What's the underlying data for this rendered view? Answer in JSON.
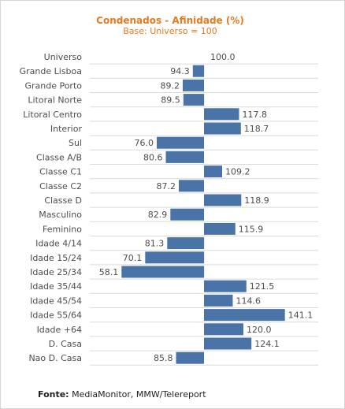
{
  "chart_data": {
    "type": "bar",
    "orientation": "horizontal",
    "title": "Condenados - Afinidade (%)",
    "subtitle": "Base: Universo = 100",
    "baseline": 100,
    "categories": [
      "Universo",
      "Grande Lisboa",
      "Grande Porto",
      "Litoral Norte",
      "Litoral Centro",
      "Interior",
      "Sul",
      "Classe A/B",
      "Classe C1",
      "Classe C2",
      "Classe D",
      "Masculino",
      "Feminino",
      "Idade 4/14",
      "Idade 15/24",
      "Idade 25/34",
      "Idade 35/44",
      "Idade 45/54",
      "Idade 55/64",
      "Idade +64",
      "D. Casa",
      "Nao D. Casa"
    ],
    "values": [
      100.0,
      94.3,
      89.2,
      89.5,
      117.8,
      118.7,
      76.0,
      80.6,
      109.2,
      87.2,
      118.9,
      82.9,
      115.9,
      81.3,
      70.1,
      58.1,
      121.5,
      114.6,
      141.1,
      120.0,
      124.1,
      85.8
    ],
    "value_labels": [
      "100.0",
      "94.3",
      "89.2",
      "89.5",
      "117.8",
      "118.7",
      "76.0",
      "80.6",
      "109.2",
      "87.2",
      "118.9",
      "82.9",
      "115.9",
      "81.3",
      "70.1",
      "58.1",
      "121.5",
      "114.6",
      "141.1",
      "120.0",
      "124.1",
      "85.8"
    ],
    "bar_color": "#4a74a8",
    "grid": true,
    "legend": "none"
  },
  "footer": {
    "source_label": "Fonte:",
    "source_text": " MediaMonitor, MMW/Telereport"
  }
}
